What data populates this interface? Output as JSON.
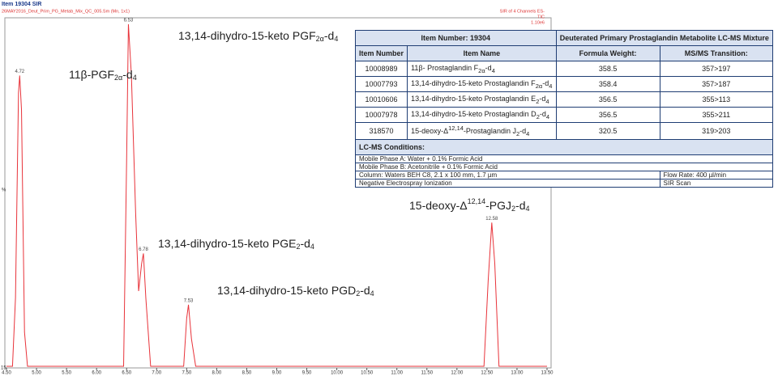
{
  "chart_data": {
    "type": "line",
    "title": "Item 19304 SIR",
    "subtitle": "26MAY2016_Deut_Prim_PG_Metab_Mix_QC_005.Sm (Mn, 1x1)",
    "channel_info": [
      "SIR of 4 Channels ES-",
      "TIC",
      "1.10e6"
    ],
    "ylabel": "%",
    "corner_label": "15",
    "color": "#e8333a",
    "x": [
      4.5,
      4.6,
      4.65,
      4.7,
      4.72,
      4.75,
      4.8,
      4.85,
      6.45,
      6.5,
      6.53,
      6.58,
      6.65,
      6.7,
      6.75,
      6.78,
      6.82,
      6.9,
      7.45,
      7.5,
      7.53,
      7.58,
      7.65,
      12.45,
      12.52,
      12.58,
      12.63,
      12.7,
      13.5
    ],
    "values": [
      0,
      0,
      20,
      80,
      85,
      75,
      10,
      0,
      0,
      60,
      100,
      85,
      45,
      22,
      30,
      33,
      20,
      0,
      0,
      14,
      18,
      8,
      0,
      0,
      25,
      42,
      30,
      0,
      0
    ],
    "peak_labels": [
      4.72,
      6.53,
      6.78,
      7.53,
      12.58
    ],
    "annotations": [
      [
        "11β-PGF",
        {
          "sub": "2α"
        },
        "-d",
        {
          "sub": "4"
        }
      ],
      [
        "13,14-dihydro-15-keto PGF",
        {
          "sub": "2α"
        },
        "-d",
        {
          "sub": "4"
        }
      ],
      [
        "13,14-dihydro-15-keto PGE",
        {
          "sub": "2"
        },
        "-d",
        {
          "sub": "4"
        }
      ],
      [
        "13,14-dihydro-15-keto PGD",
        {
          "sub": "2"
        },
        "-d",
        {
          "sub": "4"
        }
      ],
      [
        "15-deoxy-Δ",
        {
          "sup": "12,14"
        },
        "-PGJ",
        {
          "sub": "2"
        },
        "-d",
        {
          "sub": "4"
        }
      ]
    ],
    "xlim": [
      4.5,
      13.5
    ],
    "ylim": [
      0,
      100
    ],
    "xticks": [
      {
        "value": 4.5,
        "label": "4.50"
      },
      {
        "value": 5,
        "label": "5.00"
      },
      {
        "value": 5.5,
        "label": "5.50"
      },
      {
        "value": 6,
        "label": "6.00"
      },
      {
        "value": 6.5,
        "label": "6.50"
      },
      {
        "value": 7,
        "label": "7.00"
      },
      {
        "value": 7.5,
        "label": "7.50"
      },
      {
        "value": 8,
        "label": "8.00"
      },
      {
        "value": 8.5,
        "label": "8.50"
      },
      {
        "value": 9,
        "label": "9.00"
      },
      {
        "value": 9.5,
        "label": "9.50"
      },
      {
        "value": 10,
        "label": "10.00"
      },
      {
        "value": 10.5,
        "label": "10.50"
      },
      {
        "value": 11,
        "label": "11.00"
      },
      {
        "value": 11.5,
        "label": "11.50"
      },
      {
        "value": 12,
        "label": "12.00"
      },
      {
        "value": 12.5,
        "label": "12.50"
      },
      {
        "value": 13,
        "label": "13.00"
      },
      {
        "value": 13.5,
        "label": "13.50"
      }
    ]
  },
  "table": {
    "header": [
      "Item Number: 19304",
      "Deuterated Primary Prostaglandin Metabolite LC-MS Mixture"
    ],
    "columns": [
      "Item Number",
      "Item Name",
      "Formula Weight:",
      "MS/MS Transition:"
    ],
    "rows": [
      [
        "10008989",
        [
          "11β- Prostaglandin F",
          {
            "sub": "2α"
          },
          "-d",
          {
            "sub": "4"
          }
        ],
        "358.5",
        "357>197"
      ],
      [
        "10007793",
        [
          "13,14-dihydro-15-keto Prostaglandin F",
          {
            "sub": "2α"
          },
          "-d",
          {
            "sub": "4"
          }
        ],
        "358.4",
        "357>187"
      ],
      [
        "10010606",
        [
          "13,14-dihydro-15-keto Prostaglandin E",
          {
            "sub": "2"
          },
          "-d",
          {
            "sub": "4"
          }
        ],
        "356.5",
        "355>113"
      ],
      [
        "10007978",
        [
          "13,14-dihydro-15-keto Prostaglandin D",
          {
            "sub": "2"
          },
          "-d",
          {
            "sub": "4"
          }
        ],
        "356.5",
        "355>211"
      ],
      [
        "318570",
        [
          "15-deoxy-Δ",
          {
            "sup": "12,14"
          },
          "-Prostaglandin J",
          {
            "sub": "2"
          },
          "-d",
          {
            "sub": "4"
          }
        ],
        "320.5",
        "319>203"
      ]
    ],
    "conditions_title": "LC-MS Conditions:",
    "conditions": [
      [
        "Mobile Phase A: Water + 0.1% Formic Acid"
      ],
      [
        "Mobile Phase B: Acetonitrile + 0.1% Formic Acid"
      ],
      [
        "Column: Waters BEH C8, 2.1 x 100 mm, 1.7 µm",
        "Flow Rate: 400 µl/min"
      ],
      [
        "Negative Electrospray Ionization",
        "SIR Scan"
      ]
    ]
  }
}
